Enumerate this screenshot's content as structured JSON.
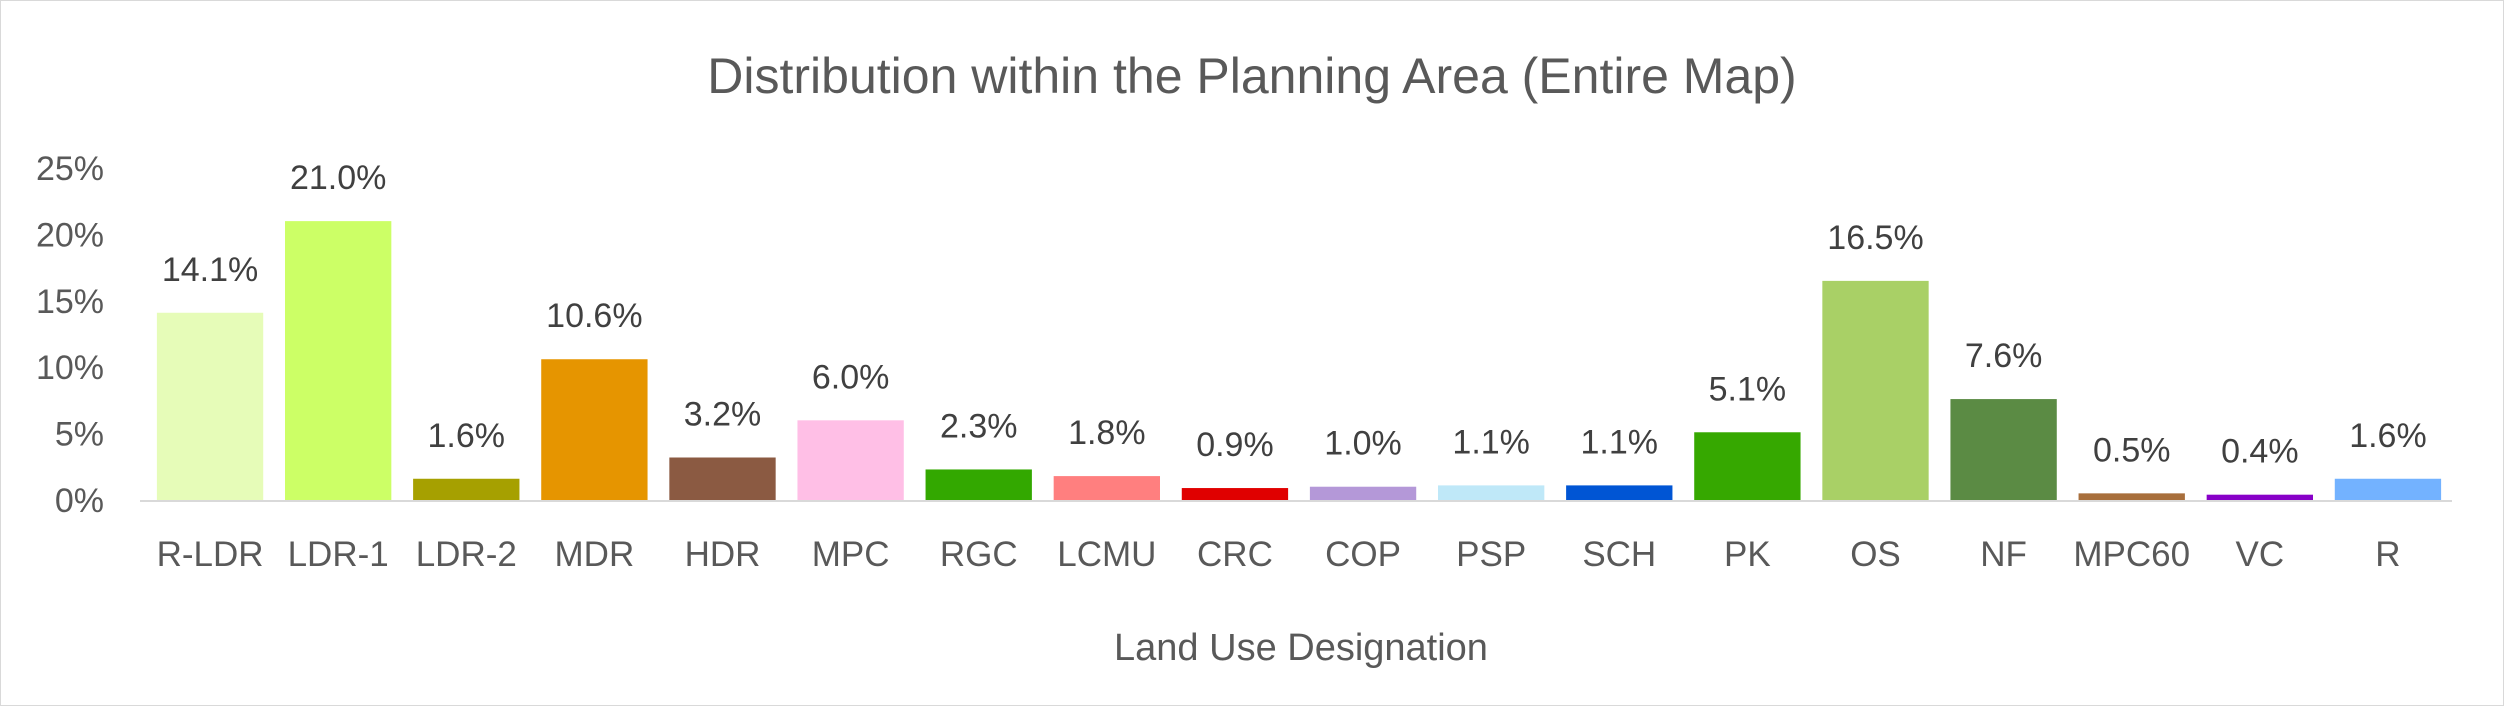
{
  "chart_data": {
    "type": "bar",
    "title": "Distribution within the Planning Area (Entire Map)",
    "xlabel": "Land Use Designation",
    "ylabel": "",
    "ylim": [
      0,
      25
    ],
    "yticks": [
      {
        "value": 0,
        "label": "0%"
      },
      {
        "value": 5,
        "label": "5%"
      },
      {
        "value": 10,
        "label": "10%"
      },
      {
        "value": 15,
        "label": "15%"
      },
      {
        "value": 20,
        "label": "20%"
      },
      {
        "value": 25,
        "label": "25%"
      }
    ],
    "grid": false,
    "categories": [
      "R-LDR",
      "LDR-1",
      "LDR-2",
      "MDR",
      "HDR",
      "MPC",
      "RGC",
      "LCMU",
      "CRC",
      "COP",
      "PSP",
      "SCH",
      "PK",
      "OS",
      "NF",
      "MPC60",
      "VC",
      "R"
    ],
    "values": [
      14.1,
      21.0,
      1.6,
      10.6,
      3.2,
      6.0,
      2.3,
      1.8,
      0.9,
      1.0,
      1.1,
      1.1,
      5.1,
      16.5,
      7.6,
      0.5,
      0.4,
      1.6
    ],
    "data_labels": [
      "14.1%",
      "21.0%",
      "1.6%",
      "10.6%",
      "3.2%",
      "6.0%",
      "2.3%",
      "1.8%",
      "0.9%",
      "1.0%",
      "1.1%",
      "1.1%",
      "5.1%",
      "16.5%",
      "7.6%",
      "0.5%",
      "0.4%",
      "1.6%"
    ],
    "colors": [
      "#e6fcb8",
      "#ccff66",
      "#a6a000",
      "#e69500",
      "#8b5a42",
      "#ffbfe6",
      "#33a800",
      "#ff7f7f",
      "#e00000",
      "#b498d8",
      "#bfe8f8",
      "#0055d4",
      "#36a800",
      "#a9d066",
      "#5b8b44",
      "#a86f3c",
      "#8800c8",
      "#73b2ff"
    ]
  }
}
